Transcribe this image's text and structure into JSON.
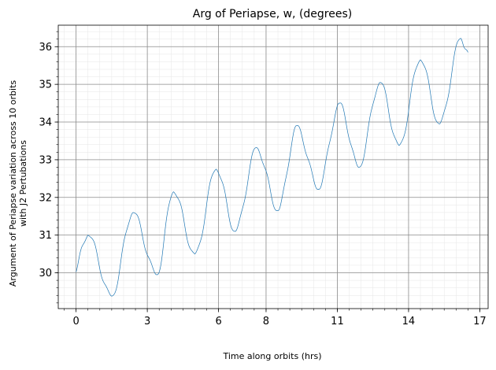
{
  "chart_data": {
    "type": "line",
    "title": "Arg of Periapse, w, (degrees)",
    "xlabel": "Time along orbits (hrs)",
    "ylabel_lines": [
      "Argument of Periapse variation across 10 orbits",
      "with J2 Pertubations"
    ],
    "xlim": [
      -0.75,
      17.35
    ],
    "ylim": [
      29.05,
      36.57
    ],
    "xticks": [
      0,
      3,
      6,
      8,
      11,
      14,
      17
    ],
    "xtick_labels": [
      "0",
      "3",
      "6",
      "8",
      "11",
      "14",
      "17"
    ],
    "yticks": [
      30,
      31,
      32,
      33,
      34,
      35,
      36
    ],
    "ytick_labels": [
      "30",
      "31",
      "32",
      "33",
      "34",
      "35",
      "36"
    ],
    "grid": {
      "major": true,
      "minor": true
    },
    "series": [
      {
        "color": "#1f77b4",
        "x": [
          0,
          0.5,
          1.5,
          2.4,
          3.4,
          4.1,
          5.0,
          5.9,
          6.7,
          7.6,
          8.5,
          9.3,
          10.2,
          11.1,
          11.9,
          12.8,
          13.6,
          14.5,
          15.3,
          16.2,
          16.5
        ],
        "y": [
          30.02,
          31.0,
          29.38,
          31.6,
          29.95,
          32.15,
          30.5,
          32.75,
          31.1,
          33.32,
          31.65,
          33.9,
          32.22,
          34.5,
          32.8,
          35.05,
          33.38,
          35.65,
          33.95,
          36.22,
          35.85
        ]
      }
    ]
  }
}
